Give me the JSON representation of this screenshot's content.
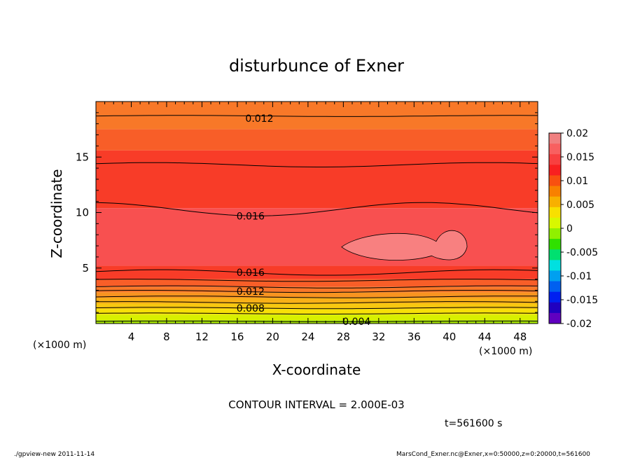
{
  "chart_data": {
    "type": "contour",
    "title": "disturbunce of Exner",
    "xlabel": "X-coordinate",
    "ylabel": "Z-coordinate",
    "x_unit_label": "(×1000 m)",
    "y_unit_label": "(×1000 m)",
    "xlim": [
      0,
      50
    ],
    "ylim": [
      0,
      20
    ],
    "x_ticks": [
      4,
      8,
      12,
      16,
      20,
      24,
      28,
      32,
      36,
      40,
      44,
      48
    ],
    "y_ticks": [
      5,
      10,
      15
    ],
    "contour_interval_text": "CONTOUR INTERVAL = 2.000E-03",
    "contour_labels": [
      {
        "text": "0.012",
        "x": 18.5,
        "z": 18.5
      },
      {
        "text": "0.016",
        "x": 17.5,
        "z": 9.7
      },
      {
        "text": "0.016",
        "x": 17.5,
        "z": 4.6
      },
      {
        "text": "0.012",
        "x": 17.5,
        "z": 2.9
      },
      {
        "text": "0.008",
        "x": 17.5,
        "z": 1.4
      },
      {
        "text": "0.004",
        "x": 29.5,
        "z": 0.2
      }
    ],
    "colorbar": {
      "labels": [
        "0.02",
        "0.015",
        "0.01",
        "0.005",
        "0",
        "-0.005",
        "-0.01",
        "-0.015",
        "-0.02"
      ],
      "colors": [
        "#f08080",
        "#f86060",
        "#f84040",
        "#f82020",
        "#f85010",
        "#f88000",
        "#f8b000",
        "#f8e000",
        "#d8f800",
        "#90f000",
        "#30e000",
        "#00e070",
        "#00e0e0",
        "#00a0f0",
        "#0060f0",
        "#0020f0",
        "#2000c0",
        "#6000c0"
      ]
    },
    "time_label": "t=561600 s"
  },
  "footer": {
    "left": "./gpview-new  2011-11-14",
    "right": "MarsCond_Exner.nc@Exner,x=0:50000,z=0:20000,t=561600"
  }
}
